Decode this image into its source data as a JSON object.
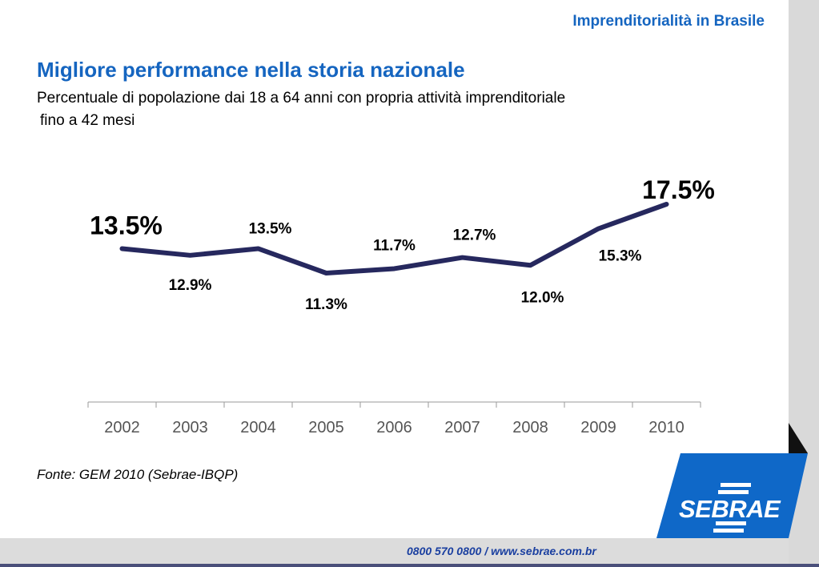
{
  "header": {
    "title": "Imprenditorialità in Brasile"
  },
  "slide": {
    "title": "Migliore performance nella storia nazionale",
    "subtitle_line1": "Percentuale di popolazione dai 18 a 64 anni con propria attività imprenditoriale",
    "subtitle_line2": "fino a 42 mesi",
    "source": "Fonte: GEM 2010 (Sebrae-IBQP)"
  },
  "logo": {
    "text": "SEBRAE"
  },
  "footer": {
    "contact": "0800 570 0800   /   www.sebrae.com.br"
  },
  "colors": {
    "accent": "#1565c0",
    "line": "#26285e",
    "logo_bg": "#0f68c8"
  },
  "chart_data": {
    "type": "line",
    "categories": [
      "2002",
      "2003",
      "2004",
      "2005",
      "2006",
      "2007",
      "2008",
      "2009",
      "2010"
    ],
    "values": [
      13.5,
      12.9,
      13.5,
      11.3,
      11.7,
      12.7,
      12.0,
      15.3,
      17.5
    ],
    "data_labels": [
      "13.5%",
      "12.9%",
      "13.5%",
      "11.3%",
      "11.7%",
      "12.7%",
      "12.0%",
      "15.3%",
      "17.5%"
    ],
    "label_position": [
      "above",
      "below",
      "above",
      "below",
      "above",
      "above",
      "below",
      "below",
      "above"
    ],
    "emphasized_labels": [
      0,
      8
    ],
    "grid": false,
    "legend": "none"
  }
}
